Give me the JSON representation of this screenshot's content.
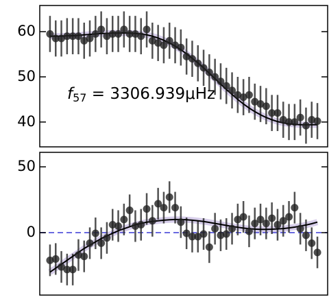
{
  "chart_data": [
    {
      "type": "scatter",
      "x": [
        0,
        1,
        2,
        3,
        4,
        5,
        6,
        7,
        8,
        9,
        10,
        11,
        12,
        13,
        14,
        15,
        16,
        17,
        18,
        19,
        20,
        21,
        22,
        23,
        24,
        25,
        26,
        27,
        28,
        29,
        30,
        31,
        32,
        33,
        34,
        35,
        36,
        37,
        38,
        39,
        40,
        41,
        42,
        43,
        44,
        45,
        46,
        47
      ],
      "values": [
        59.5,
        58.5,
        58.5,
        59,
        59,
        59,
        58,
        58.5,
        59.5,
        60.5,
        59,
        59.5,
        59.5,
        60.5,
        59.5,
        59.5,
        59,
        60.5,
        58,
        57.5,
        57,
        58,
        57,
        56.5,
        54.5,
        54,
        53,
        52,
        51,
        50,
        49,
        48,
        47,
        46,
        45.5,
        46,
        44.5,
        44,
        43.5,
        42,
        42,
        40.5,
        40,
        40,
        41,
        39.2,
        40.5,
        40.2
      ],
      "errors": [
        4,
        4,
        4,
        4,
        4,
        4,
        4,
        4,
        4,
        4,
        4,
        4,
        4,
        4,
        4,
        4,
        4,
        4,
        4,
        4,
        4,
        4,
        4,
        4,
        4,
        4,
        4,
        4,
        4,
        4,
        4,
        4,
        4,
        4,
        4,
        4,
        4,
        4,
        4,
        4,
        4,
        4,
        4,
        4,
        4,
        4,
        4,
        4
      ],
      "fit": [
        59.0,
        59.0,
        59.0,
        59.1,
        59.1,
        59.2,
        59.3,
        59.4,
        59.5,
        59.6,
        59.6,
        59.7,
        59.7,
        59.7,
        59.7,
        59.6,
        59.5,
        59.3,
        59.0,
        58.6,
        58.1,
        57.5,
        56.8,
        56.0,
        55.1,
        54.1,
        53.1,
        52.0,
        50.8,
        49.6,
        48.4,
        47.2,
        46.1,
        45.0,
        44.0,
        43.1,
        42.3,
        41.6,
        41.0,
        40.5,
        40.1,
        39.8,
        39.6,
        39.5,
        39.4,
        39.4,
        39.4,
        39.4
      ],
      "color": "#222222",
      "fit_color": "#000000",
      "band_color": "#7a5cb8",
      "xlim": [
        -1.8,
        48.8
      ],
      "ylim": [
        34.5,
        65.8
      ],
      "yticks": [
        40,
        50,
        60
      ],
      "annotation": {
        "symbol": "f",
        "subscript": "57",
        "text": " = 3306.939μHz"
      }
    },
    {
      "type": "scatter",
      "x": [
        0,
        1,
        2,
        3,
        4,
        5,
        6,
        7,
        8,
        9,
        10,
        11,
        12,
        13,
        14,
        15,
        16,
        17,
        18,
        19,
        20,
        21,
        22,
        23,
        24,
        25,
        26,
        27,
        28,
        29,
        30,
        31,
        32,
        33,
        34,
        35,
        36,
        37,
        38,
        39,
        40,
        41,
        42,
        43,
        44,
        45,
        46,
        47
      ],
      "values": [
        -21,
        -20,
        -26,
        -28,
        -28,
        -17,
        -18,
        -8,
        -0.5,
        -8,
        -4,
        6,
        5,
        10,
        17,
        5,
        6,
        18,
        9,
        22,
        19,
        27,
        19,
        8,
        -0.5,
        -3,
        -3,
        -1,
        -11,
        3,
        -2,
        -1,
        3,
        10,
        12,
        1,
        7,
        10,
        7,
        11,
        6,
        9,
        12,
        19,
        3,
        -2,
        -8,
        -15
      ],
      "errors": [
        12,
        12,
        12,
        12,
        12,
        12,
        12,
        12,
        12,
        12,
        12,
        12,
        12,
        12,
        12,
        12,
        12,
        12,
        12,
        12,
        12,
        12,
        12,
        12,
        12,
        12,
        12,
        12,
        12,
        12,
        12,
        12,
        12,
        12,
        12,
        12,
        12,
        12,
        12,
        12,
        12,
        12,
        12,
        12,
        12,
        12,
        12,
        12
      ],
      "fit": [
        -30,
        -27,
        -24,
        -21,
        -18,
        -15,
        -12,
        -9.5,
        -7,
        -4.5,
        -2.5,
        -0.5,
        1.5,
        3,
        4.5,
        6,
        7,
        8,
        8.5,
        9,
        9.5,
        9.8,
        10,
        10,
        9.8,
        9.5,
        9,
        8.5,
        7.8,
        7,
        6.3,
        5.5,
        4.8,
        4.1,
        3.5,
        3,
        2.7,
        2.5,
        2.5,
        2.6,
        2.8,
        3.1,
        3.6,
        4.2,
        5,
        5.8,
        6.8,
        8
      ],
      "color": "#222222",
      "fit_color": "#000000",
      "band_color": "#7a5cb8",
      "hline": 0,
      "hline_color": "#6a6ae0",
      "xlim": [
        -1.8,
        48.8
      ],
      "ylim": [
        -47.4,
        61
      ],
      "yticks": [
        0,
        50
      ]
    }
  ]
}
